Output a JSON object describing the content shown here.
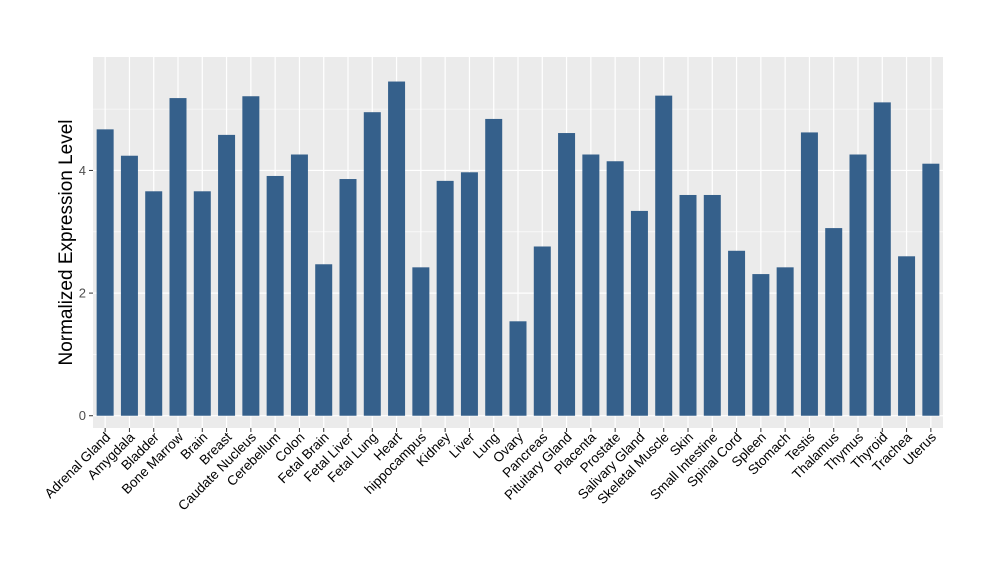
{
  "chart_data": {
    "type": "bar",
    "title": "",
    "xlabel": "",
    "ylabel": "Normalized Expression Level",
    "ylim": [
      -0.2,
      5.85
    ],
    "yticks": [
      0,
      2,
      4
    ],
    "grid": true,
    "legend": "none",
    "colors": {
      "bar": "#35608B",
      "panel_background": "#EBEBEB",
      "gridline": "#FFFFFF",
      "text": "#000000",
      "tick_text": "#4D4D4D"
    },
    "categories": [
      "Adrenal Gland",
      "Amygdala",
      "Bladder",
      "Bone Marrow",
      "Brain",
      "Breast",
      "Caudate Nucleus",
      "Cerebellum",
      "Colon",
      "Fetal Brain",
      "Fetal Liver",
      "Fetal Lung",
      "Heart",
      "hippocampus",
      "Kidney",
      "Liver",
      "Lung",
      "Ovary",
      "Pancreas",
      "Pituitary Gland",
      "Placenta",
      "Prostate",
      "Salivary Gland",
      "Skeletal Muscle",
      "Skin",
      "Small Intestine",
      "Spinal Cord",
      "Spleen",
      "Stomach",
      "Testis",
      "Thalamus",
      "Thymus",
      "Thyroid",
      "Trachea",
      "Uterus"
    ],
    "values": [
      4.67,
      4.24,
      3.66,
      5.18,
      3.66,
      4.58,
      5.21,
      3.91,
      4.26,
      2.47,
      3.86,
      4.95,
      5.45,
      2.42,
      3.83,
      3.97,
      4.84,
      1.54,
      2.76,
      4.61,
      4.26,
      4.15,
      3.34,
      5.22,
      3.6,
      3.6,
      2.69,
      2.31,
      2.42,
      4.62,
      3.06,
      4.26,
      5.11,
      2.6,
      4.11
    ]
  }
}
